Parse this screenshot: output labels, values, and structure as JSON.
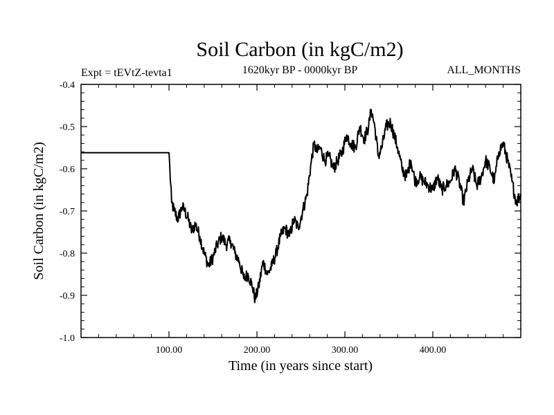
{
  "chart_data": {
    "type": "line",
    "title": "Soil Carbon (in kgC/m2)",
    "subtitle_left": "Expt = tEVtZ-tevta1",
    "subtitle_center": "1620kyr BP - 0000kyr BP",
    "subtitle_right": "ALL_MONTHS",
    "xlabel": "Time (in years since start)",
    "ylabel": "Soil Carbon (in kgC/m2)",
    "xlim": [
      0,
      500
    ],
    "ylim": [
      -1.0,
      -0.4
    ],
    "x_ticks": [
      100,
      200,
      300,
      400
    ],
    "x_tick_labels": [
      "100.00",
      "200.00",
      "300.00",
      "400.00"
    ],
    "y_ticks": [
      -1.0,
      -0.9,
      -0.8,
      -0.7,
      -0.6,
      -0.5,
      -0.4
    ],
    "y_tick_labels": [
      "-1.0",
      "-0.9",
      "-0.8",
      "-0.7",
      "-0.6",
      "-0.5",
      "-0.4"
    ],
    "grid": false,
    "series": [
      {
        "name": "Soil Carbon",
        "color": "#000000",
        "x": [
          0,
          100,
          101,
          103,
          106,
          110,
          115,
          118,
          122,
          126,
          130,
          135,
          140,
          145,
          150,
          155,
          160,
          165,
          170,
          175,
          180,
          185,
          190,
          195,
          198,
          202,
          207,
          212,
          217,
          222,
          227,
          232,
          237,
          242,
          247,
          252,
          257,
          262,
          265,
          268,
          272,
          277,
          282,
          287,
          292,
          297,
          302,
          307,
          312,
          317,
          322,
          327,
          330,
          334,
          338,
          342,
          347,
          352,
          356,
          360,
          365,
          370,
          375,
          380,
          385,
          390,
          395,
          400,
          405,
          410,
          415,
          420,
          425,
          430,
          435,
          440,
          445,
          450,
          455,
          460,
          465,
          470,
          475,
          480,
          485,
          490,
          495,
          500
        ],
        "values": [
          -0.562,
          -0.562,
          -0.6,
          -0.68,
          -0.7,
          -0.72,
          -0.69,
          -0.7,
          -0.72,
          -0.75,
          -0.73,
          -0.76,
          -0.8,
          -0.83,
          -0.81,
          -0.78,
          -0.76,
          -0.78,
          -0.77,
          -0.8,
          -0.82,
          -0.86,
          -0.85,
          -0.88,
          -0.91,
          -0.88,
          -0.82,
          -0.85,
          -0.83,
          -0.8,
          -0.76,
          -0.74,
          -0.76,
          -0.72,
          -0.74,
          -0.7,
          -0.66,
          -0.58,
          -0.54,
          -0.56,
          -0.55,
          -0.58,
          -0.57,
          -0.6,
          -0.58,
          -0.56,
          -0.52,
          -0.54,
          -0.55,
          -0.5,
          -0.53,
          -0.5,
          -0.46,
          -0.5,
          -0.57,
          -0.55,
          -0.5,
          -0.49,
          -0.52,
          -0.55,
          -0.6,
          -0.62,
          -0.58,
          -0.63,
          -0.62,
          -0.63,
          -0.64,
          -0.65,
          -0.62,
          -0.65,
          -0.64,
          -0.63,
          -0.6,
          -0.63,
          -0.68,
          -0.63,
          -0.6,
          -0.64,
          -0.62,
          -0.58,
          -0.6,
          -0.63,
          -0.56,
          -0.54,
          -0.58,
          -0.63,
          -0.68,
          -0.66
        ]
      }
    ]
  }
}
